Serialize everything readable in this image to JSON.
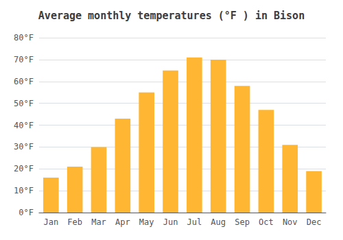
{
  "chart_data": {
    "type": "bar",
    "title": "Average monthly temperatures (°F ) in Bison",
    "categories": [
      "Jan",
      "Feb",
      "Mar",
      "Apr",
      "May",
      "Jun",
      "Jul",
      "Aug",
      "Sep",
      "Oct",
      "Nov",
      "Dec"
    ],
    "values": [
      16,
      21,
      30,
      43,
      55,
      65,
      71,
      70,
      58,
      47,
      31,
      19
    ],
    "color": "#FFB733",
    "ylim": [
      0,
      80
    ],
    "yticks": [
      {
        "value": 0,
        "label": "0°F"
      },
      {
        "value": 10,
        "label": "10°F"
      },
      {
        "value": 20,
        "label": "20°F"
      },
      {
        "value": 30,
        "label": "30°F"
      },
      {
        "value": 40,
        "label": "40°F"
      },
      {
        "value": 50,
        "label": "50°F"
      },
      {
        "value": 60,
        "label": "60°F"
      },
      {
        "value": 70,
        "label": "70°F"
      },
      {
        "value": 80,
        "label": "80°F"
      }
    ],
    "grid": true
  }
}
